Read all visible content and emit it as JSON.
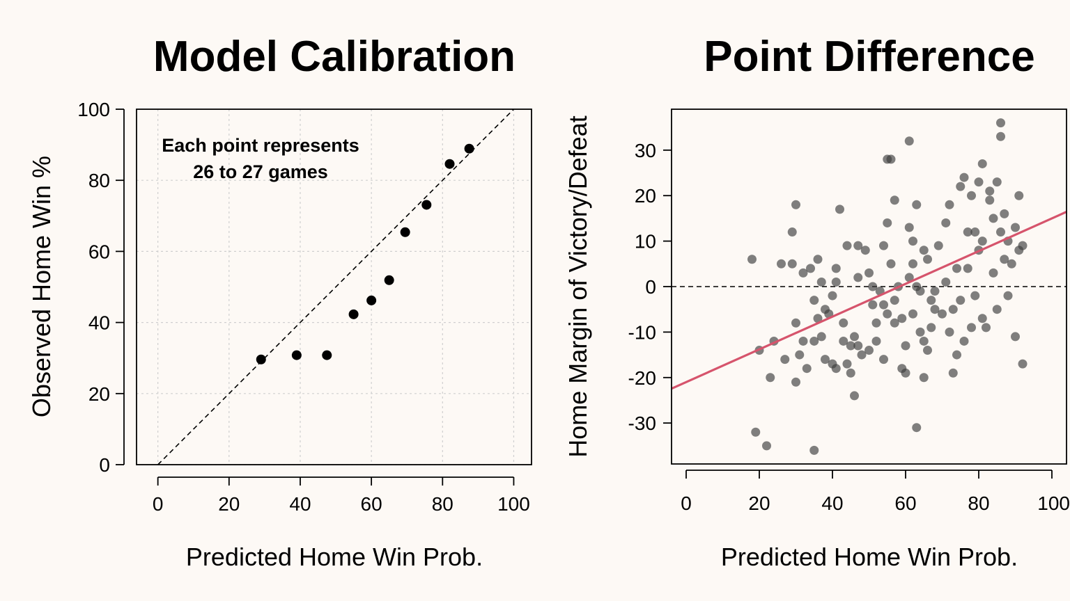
{
  "chart_data": [
    {
      "type": "scatter",
      "title": "Model Calibration",
      "xlabel": "Predicted Home Win Prob.",
      "ylabel": "Observed Home Win %",
      "xlim": [
        -6,
        105
      ],
      "ylim": [
        0,
        100
      ],
      "xticks": [
        0,
        20,
        40,
        60,
        80,
        100
      ],
      "yticks": [
        0,
        20,
        40,
        60,
        80,
        100
      ],
      "grid": true,
      "reference_line": {
        "type": "identity",
        "style": "dashed"
      },
      "annotation": [
        "Each point represents",
        "26 to 27 games"
      ],
      "points": [
        {
          "x": 29,
          "y": 29.6
        },
        {
          "x": 39,
          "y": 30.8
        },
        {
          "x": 47.5,
          "y": 30.8
        },
        {
          "x": 55,
          "y": 42.3
        },
        {
          "x": 60,
          "y": 46.2
        },
        {
          "x": 65,
          "y": 51.9
        },
        {
          "x": 69.5,
          "y": 65.4
        },
        {
          "x": 75.5,
          "y": 73.1
        },
        {
          "x": 82,
          "y": 84.6
        },
        {
          "x": 87.5,
          "y": 88.9
        }
      ]
    },
    {
      "type": "scatter",
      "title": "Point Difference",
      "xlabel": "Predicted Home Win Prob.",
      "ylabel": "Home Margin of Victory/Defeat",
      "xlim": [
        -4,
        104
      ],
      "ylim": [
        -39,
        39
      ],
      "xticks": [
        0,
        20,
        40,
        60,
        80,
        100
      ],
      "yticks": [
        -30,
        -20,
        -10,
        0,
        10,
        20,
        30
      ],
      "grid": false,
      "reference_line": {
        "type": "horizontal",
        "y": 0,
        "style": "dashed"
      },
      "fit_line": {
        "intercept": -21,
        "slope": 0.36,
        "color": "#d6546c"
      },
      "point_color": "rgba(60,60,60,0.65)",
      "points": [
        [
          18,
          6
        ],
        [
          19,
          -32
        ],
        [
          20,
          -14
        ],
        [
          22,
          -35
        ],
        [
          23,
          -20
        ],
        [
          24,
          -12
        ],
        [
          26,
          5
        ],
        [
          27,
          -16
        ],
        [
          29,
          5
        ],
        [
          29,
          12
        ],
        [
          30,
          18
        ],
        [
          30,
          -8
        ],
        [
          30,
          -21
        ],
        [
          31,
          -15
        ],
        [
          32,
          3
        ],
        [
          32,
          -12
        ],
        [
          33,
          -18
        ],
        [
          34,
          4
        ],
        [
          35,
          -12
        ],
        [
          35,
          -3
        ],
        [
          35,
          -36
        ],
        [
          36,
          6
        ],
        [
          36,
          -7
        ],
        [
          37,
          1
        ],
        [
          37,
          -11
        ],
        [
          38,
          -16
        ],
        [
          38,
          -5
        ],
        [
          39,
          -6
        ],
        [
          40,
          -17
        ],
        [
          40,
          -2
        ],
        [
          41,
          -18
        ],
        [
          41,
          1
        ],
        [
          41,
          4
        ],
        [
          42,
          17
        ],
        [
          43,
          -8
        ],
        [
          43,
          -12
        ],
        [
          44,
          -17
        ],
        [
          44,
          9
        ],
        [
          45,
          -13
        ],
        [
          45,
          -19
        ],
        [
          46,
          -24
        ],
        [
          46,
          -11
        ],
        [
          47,
          2
        ],
        [
          47,
          -13
        ],
        [
          47,
          9
        ],
        [
          48,
          -15
        ],
        [
          49,
          8
        ],
        [
          50,
          -14
        ],
        [
          50,
          3
        ],
        [
          51,
          -4
        ],
        [
          51,
          0
        ],
        [
          52,
          -8
        ],
        [
          52,
          -12
        ],
        [
          53,
          -1
        ],
        [
          54,
          -4
        ],
        [
          54,
          -16
        ],
        [
          54,
          9
        ],
        [
          55,
          28
        ],
        [
          55,
          -6
        ],
        [
          55,
          14
        ],
        [
          56,
          28
        ],
        [
          56,
          5
        ],
        [
          57,
          -3
        ],
        [
          57,
          -8
        ],
        [
          57,
          19
        ],
        [
          58,
          0
        ],
        [
          59,
          -18
        ],
        [
          59,
          -7
        ],
        [
          60,
          -13
        ],
        [
          60,
          -19
        ],
        [
          61,
          32
        ],
        [
          61,
          2
        ],
        [
          61,
          13
        ],
        [
          62,
          5
        ],
        [
          62,
          10
        ],
        [
          62,
          -6
        ],
        [
          63,
          18
        ],
        [
          63,
          -31
        ],
        [
          63,
          0
        ],
        [
          64,
          -10
        ],
        [
          64,
          -1
        ],
        [
          65,
          -20
        ],
        [
          65,
          8
        ],
        [
          65,
          -12
        ],
        [
          66,
          6
        ],
        [
          66,
          -14
        ],
        [
          67,
          -3
        ],
        [
          67,
          -9
        ],
        [
          68,
          -5
        ],
        [
          68,
          -1
        ],
        [
          69,
          9
        ],
        [
          70,
          -6
        ],
        [
          71,
          14
        ],
        [
          71,
          1
        ],
        [
          72,
          -10
        ],
        [
          72,
          18
        ],
        [
          73,
          -5
        ],
        [
          73,
          -19
        ],
        [
          74,
          4
        ],
        [
          74,
          -15
        ],
        [
          75,
          22
        ],
        [
          75,
          -3
        ],
        [
          76,
          24
        ],
        [
          76,
          -12
        ],
        [
          77,
          12
        ],
        [
          77,
          4
        ],
        [
          78,
          -9
        ],
        [
          78,
          20
        ],
        [
          79,
          12
        ],
        [
          79,
          -2
        ],
        [
          80,
          23
        ],
        [
          80,
          8
        ],
        [
          81,
          -7
        ],
        [
          81,
          10
        ],
        [
          81,
          27
        ],
        [
          82,
          -9
        ],
        [
          83,
          21
        ],
        [
          83,
          19
        ],
        [
          84,
          3
        ],
        [
          84,
          15
        ],
        [
          85,
          -5
        ],
        [
          85,
          23
        ],
        [
          86,
          12
        ],
        [
          86,
          36
        ],
        [
          86,
          33
        ],
        [
          87,
          16
        ],
        [
          87,
          6
        ],
        [
          88,
          10
        ],
        [
          88,
          -2
        ],
        [
          89,
          5
        ],
        [
          90,
          -11
        ],
        [
          90,
          13
        ],
        [
          91,
          20
        ],
        [
          91,
          8
        ],
        [
          92,
          -17
        ],
        [
          92,
          9
        ]
      ]
    }
  ]
}
